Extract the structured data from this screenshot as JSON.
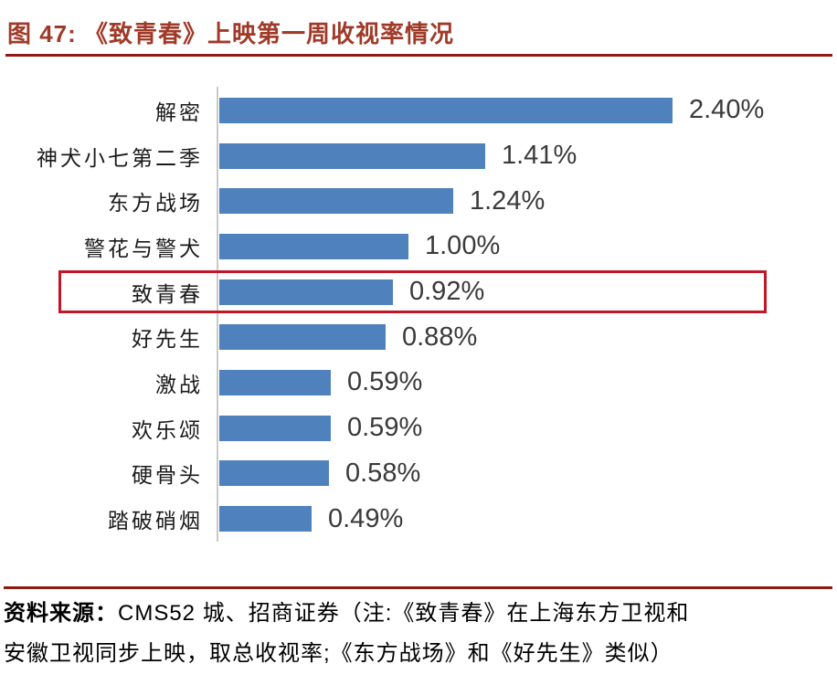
{
  "header": {
    "title": "图 47: 《致青春》上映第一周收视率情况"
  },
  "chart_data": {
    "type": "bar",
    "orientation": "horizontal",
    "title": "《致青春》上映第一周收视率情况",
    "categories": [
      "解密",
      "神犬小七第二季",
      "东方战场",
      "警花与警犬",
      "致青春",
      "好先生",
      "激战",
      "欢乐颂",
      "硬骨头",
      "踏破硝烟"
    ],
    "values": [
      2.4,
      1.41,
      1.24,
      1.0,
      0.92,
      0.88,
      0.59,
      0.59,
      0.58,
      0.49
    ],
    "data_labels": [
      "2.40%",
      "1.41%",
      "1.24%",
      "1.00%",
      "0.92%",
      "0.88%",
      "0.59%",
      "0.59%",
      "0.58%",
      "0.49%"
    ],
    "unit": "%",
    "xlim": [
      0,
      3
    ],
    "grid": false,
    "legend": false,
    "highlighted_category": "致青春",
    "highlighted_index": 4,
    "highlighted_value_label": "0.92%"
  },
  "footer": {
    "label": "资料来源：",
    "line1": "CMS52 城、招商证券（注:《致青春》在上海东方卫视和",
    "line2": "安徽卫视同步上映，取总收视率;《东方战场》和《好先生》类似）"
  },
  "colors": {
    "bar": "#4F81BD",
    "title": "#A03A28",
    "rule": "#8E1B12",
    "highlight_box": "#C01626",
    "axis": "#C9C9C9"
  }
}
